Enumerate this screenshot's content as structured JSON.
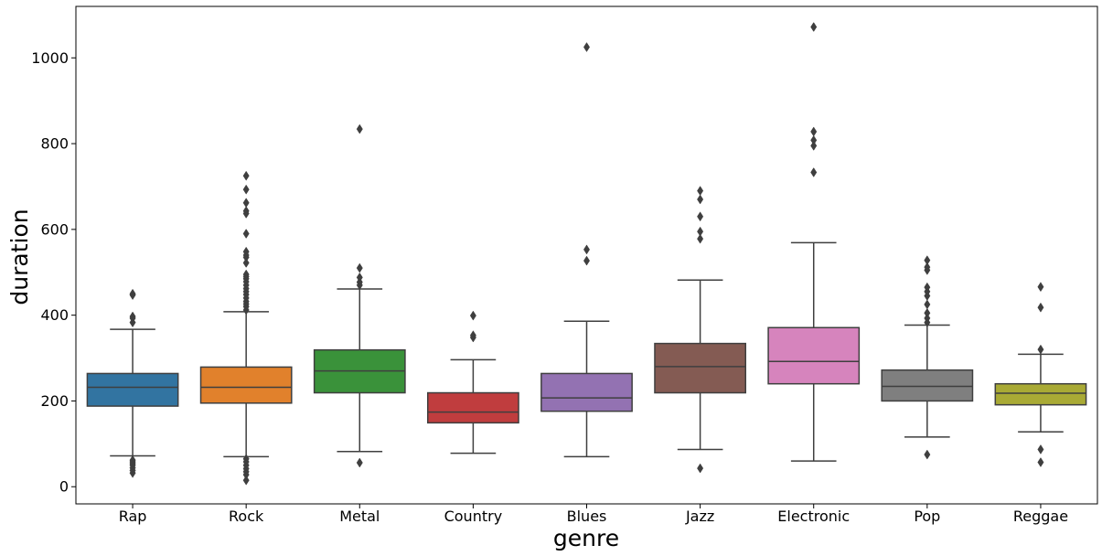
{
  "chart_data": {
    "type": "box",
    "title": "",
    "xlabel": "genre",
    "ylabel": "duration",
    "ylim": [
      -40,
      1120
    ],
    "yticks": [
      0,
      200,
      400,
      600,
      800,
      1000
    ],
    "grid": false,
    "categories": [
      "Rap",
      "Rock",
      "Metal",
      "Country",
      "Blues",
      "Jazz",
      "Electronic",
      "Pop",
      "Reggae"
    ],
    "colors": [
      "#3274a1",
      "#e1812c",
      "#3a923a",
      "#c03d3e",
      "#9372b2",
      "#845b53",
      "#d684bd",
      "#7f7f7f",
      "#a9aa35"
    ],
    "boxes": [
      {
        "q1": 188,
        "median": 232,
        "q3": 264,
        "whislo": 72,
        "whishi": 367,
        "fliers": [
          32,
          38,
          44,
          50,
          54,
          58,
          62,
          383,
          393,
          397,
          447,
          450
        ]
      },
      {
        "q1": 195,
        "median": 232,
        "q3": 279,
        "whislo": 70,
        "whishi": 408,
        "fliers": [
          15,
          28,
          35,
          42,
          50,
          58,
          65,
          412,
          420,
          426,
          432,
          440,
          448,
          455,
          462,
          470,
          478,
          485,
          490,
          495,
          522,
          535,
          540,
          548,
          590,
          637,
          643,
          662,
          693,
          725
        ]
      },
      {
        "q1": 219,
        "median": 270,
        "q3": 319,
        "whislo": 82,
        "whishi": 461,
        "fliers": [
          56,
          470,
          477,
          488,
          510,
          834
        ]
      },
      {
        "q1": 149,
        "median": 174,
        "q3": 219,
        "whislo": 78,
        "whishi": 296,
        "fliers": [
          348,
          353,
          399
        ]
      },
      {
        "q1": 176,
        "median": 207,
        "q3": 264,
        "whislo": 70,
        "whishi": 386,
        "fliers": [
          527,
          553,
          1025
        ]
      },
      {
        "q1": 219,
        "median": 280,
        "q3": 334,
        "whislo": 87,
        "whishi": 482,
        "fliers": [
          43,
          578,
          595,
          630,
          670,
          690
        ]
      },
      {
        "q1": 240,
        "median": 292,
        "q3": 371,
        "whislo": 60,
        "whishi": 569,
        "fliers": [
          733,
          795,
          808,
          828,
          1072
        ]
      },
      {
        "q1": 200,
        "median": 234,
        "q3": 272,
        "whislo": 116,
        "whishi": 377,
        "fliers": [
          75,
          383,
          393,
          405,
          425,
          445,
          455,
          465,
          505,
          512,
          528
        ]
      },
      {
        "q1": 191,
        "median": 218,
        "q3": 240,
        "whislo": 128,
        "whishi": 309,
        "fliers": [
          57,
          87,
          320,
          418,
          466
        ]
      }
    ]
  }
}
